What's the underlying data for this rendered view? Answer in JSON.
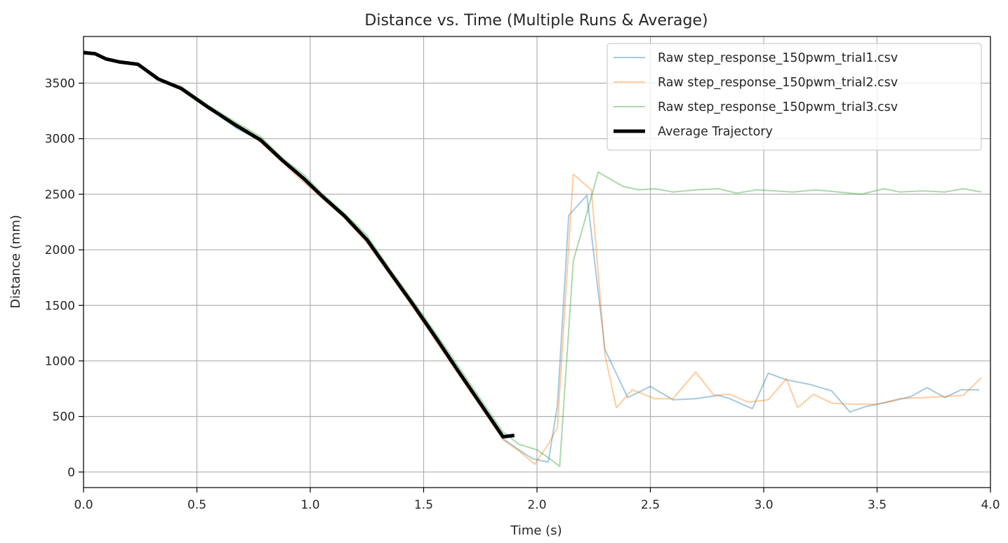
{
  "chart_data": {
    "type": "line",
    "title": "Distance vs. Time (Multiple Runs & Average)",
    "xlabel": "Time (s)",
    "ylabel": "Distance (mm)",
    "xlim": [
      0,
      4
    ],
    "ylim": [
      -140,
      3920
    ],
    "xticks": [
      0,
      0.5,
      1,
      1.5,
      2,
      2.5,
      3,
      3.5,
      4
    ],
    "xtick_labels": [
      "0.0",
      "0.5",
      "1.0",
      "1.5",
      "2.0",
      "2.5",
      "3.0",
      "3.5",
      "4.0"
    ],
    "yticks": [
      0,
      500,
      1000,
      1500,
      2000,
      2500,
      3000,
      3500
    ],
    "ytick_labels": [
      "0",
      "500",
      "1000",
      "1500",
      "2000",
      "2500",
      "3000",
      "3500"
    ],
    "grid": true,
    "legend_position": "top-right",
    "series": [
      {
        "name": "Raw step_response_150pwm_trial1.csv",
        "color": "#1f77b4",
        "opacity": 0.4,
        "width": 2,
        "x": [
          0.0,
          0.05,
          0.1,
          0.16,
          0.24,
          0.33,
          0.43,
          0.55,
          0.67,
          0.78,
          0.88,
          0.97,
          1.05,
          1.15,
          1.25,
          1.35,
          1.45,
          1.55,
          1.65,
          1.75,
          1.85,
          1.92,
          1.98,
          2.05,
          2.09,
          2.14,
          2.22,
          2.3,
          2.4,
          2.5,
          2.6,
          2.7,
          2.8,
          2.85,
          2.95,
          3.02,
          3.1,
          3.2,
          3.3,
          3.38,
          3.45,
          3.55,
          3.65,
          3.72,
          3.8,
          3.87,
          3.95
        ],
        "y": [
          3775,
          3760,
          3720,
          3690,
          3660,
          3540,
          3450,
          3280,
          3100,
          2980,
          2800,
          2640,
          2480,
          2300,
          2080,
          1800,
          1510,
          1210,
          900,
          600,
          300,
          200,
          120,
          90,
          600,
          2310,
          2490,
          1100,
          670,
          770,
          650,
          660,
          690,
          660,
          570,
          890,
          830,
          790,
          730,
          540,
          590,
          630,
          680,
          760,
          670,
          740,
          740
        ]
      },
      {
        "name": "Raw step_response_150pwm_trial2.csv",
        "color": "#ff7f0e",
        "opacity": 0.4,
        "width": 2,
        "x": [
          0.0,
          0.05,
          0.1,
          0.16,
          0.24,
          0.33,
          0.43,
          0.55,
          0.67,
          0.78,
          0.88,
          0.97,
          1.05,
          1.15,
          1.25,
          1.35,
          1.45,
          1.55,
          1.65,
          1.75,
          1.85,
          1.92,
          1.99,
          2.05,
          2.09,
          2.16,
          2.24,
          2.3,
          2.35,
          2.42,
          2.52,
          2.6,
          2.7,
          2.78,
          2.85,
          2.93,
          3.02,
          3.1,
          3.15,
          3.22,
          3.3,
          3.4,
          3.5,
          3.6,
          3.7,
          3.8,
          3.88,
          3.96
        ],
        "y": [
          3760,
          3770,
          3720,
          3690,
          3670,
          3530,
          3440,
          3270,
          3120,
          2970,
          2780,
          2610,
          2470,
          2290,
          2060,
          1780,
          1490,
          1190,
          890,
          590,
          290,
          190,
          70,
          250,
          400,
          2680,
          2540,
          1050,
          580,
          740,
          660,
          660,
          900,
          690,
          700,
          630,
          650,
          840,
          580,
          700,
          620,
          610,
          610,
          660,
          670,
          680,
          690,
          850
        ]
      },
      {
        "name": "Raw step_response_150pwm_trial3.csv",
        "color": "#2ca02c",
        "opacity": 0.4,
        "width": 2,
        "x": [
          0.0,
          0.05,
          0.1,
          0.16,
          0.24,
          0.33,
          0.43,
          0.55,
          0.67,
          0.78,
          0.88,
          0.97,
          1.05,
          1.15,
          1.25,
          1.35,
          1.45,
          1.55,
          1.65,
          1.75,
          1.85,
          1.92,
          2.0,
          2.07,
          2.1,
          2.16,
          2.22,
          2.27,
          2.32,
          2.38,
          2.45,
          2.52,
          2.6,
          2.7,
          2.8,
          2.88,
          2.97,
          3.05,
          3.13,
          3.23,
          3.33,
          3.43,
          3.53,
          3.6,
          3.7,
          3.8,
          3.88,
          3.96
        ],
        "y": [
          3790,
          3770,
          3710,
          3690,
          3680,
          3540,
          3470,
          3300,
          3150,
          3020,
          2820,
          2680,
          2510,
          2330,
          2130,
          1830,
          1550,
          1260,
          960,
          660,
          360,
          250,
          200,
          100,
          50,
          1900,
          2330,
          2700,
          2640,
          2570,
          2540,
          2550,
          2520,
          2540,
          2550,
          2510,
          2540,
          2530,
          2520,
          2540,
          2520,
          2500,
          2550,
          2520,
          2530,
          2520,
          2550,
          2520
        ]
      },
      {
        "name": "Average Trajectory",
        "color": "#000000",
        "opacity": 1,
        "width": 5,
        "x": [
          0.0,
          0.05,
          0.1,
          0.16,
          0.24,
          0.33,
          0.43,
          0.55,
          0.67,
          0.78,
          0.88,
          0.97,
          1.05,
          1.15,
          1.25,
          1.35,
          1.45,
          1.55,
          1.65,
          1.75,
          1.85,
          1.9
        ],
        "y": [
          3775,
          3765,
          3717,
          3690,
          3670,
          3537,
          3453,
          3283,
          3123,
          2990,
          2800,
          2643,
          2487,
          2307,
          2090,
          1803,
          1517,
          1220,
          917,
          617,
          317,
          330
        ]
      }
    ]
  }
}
